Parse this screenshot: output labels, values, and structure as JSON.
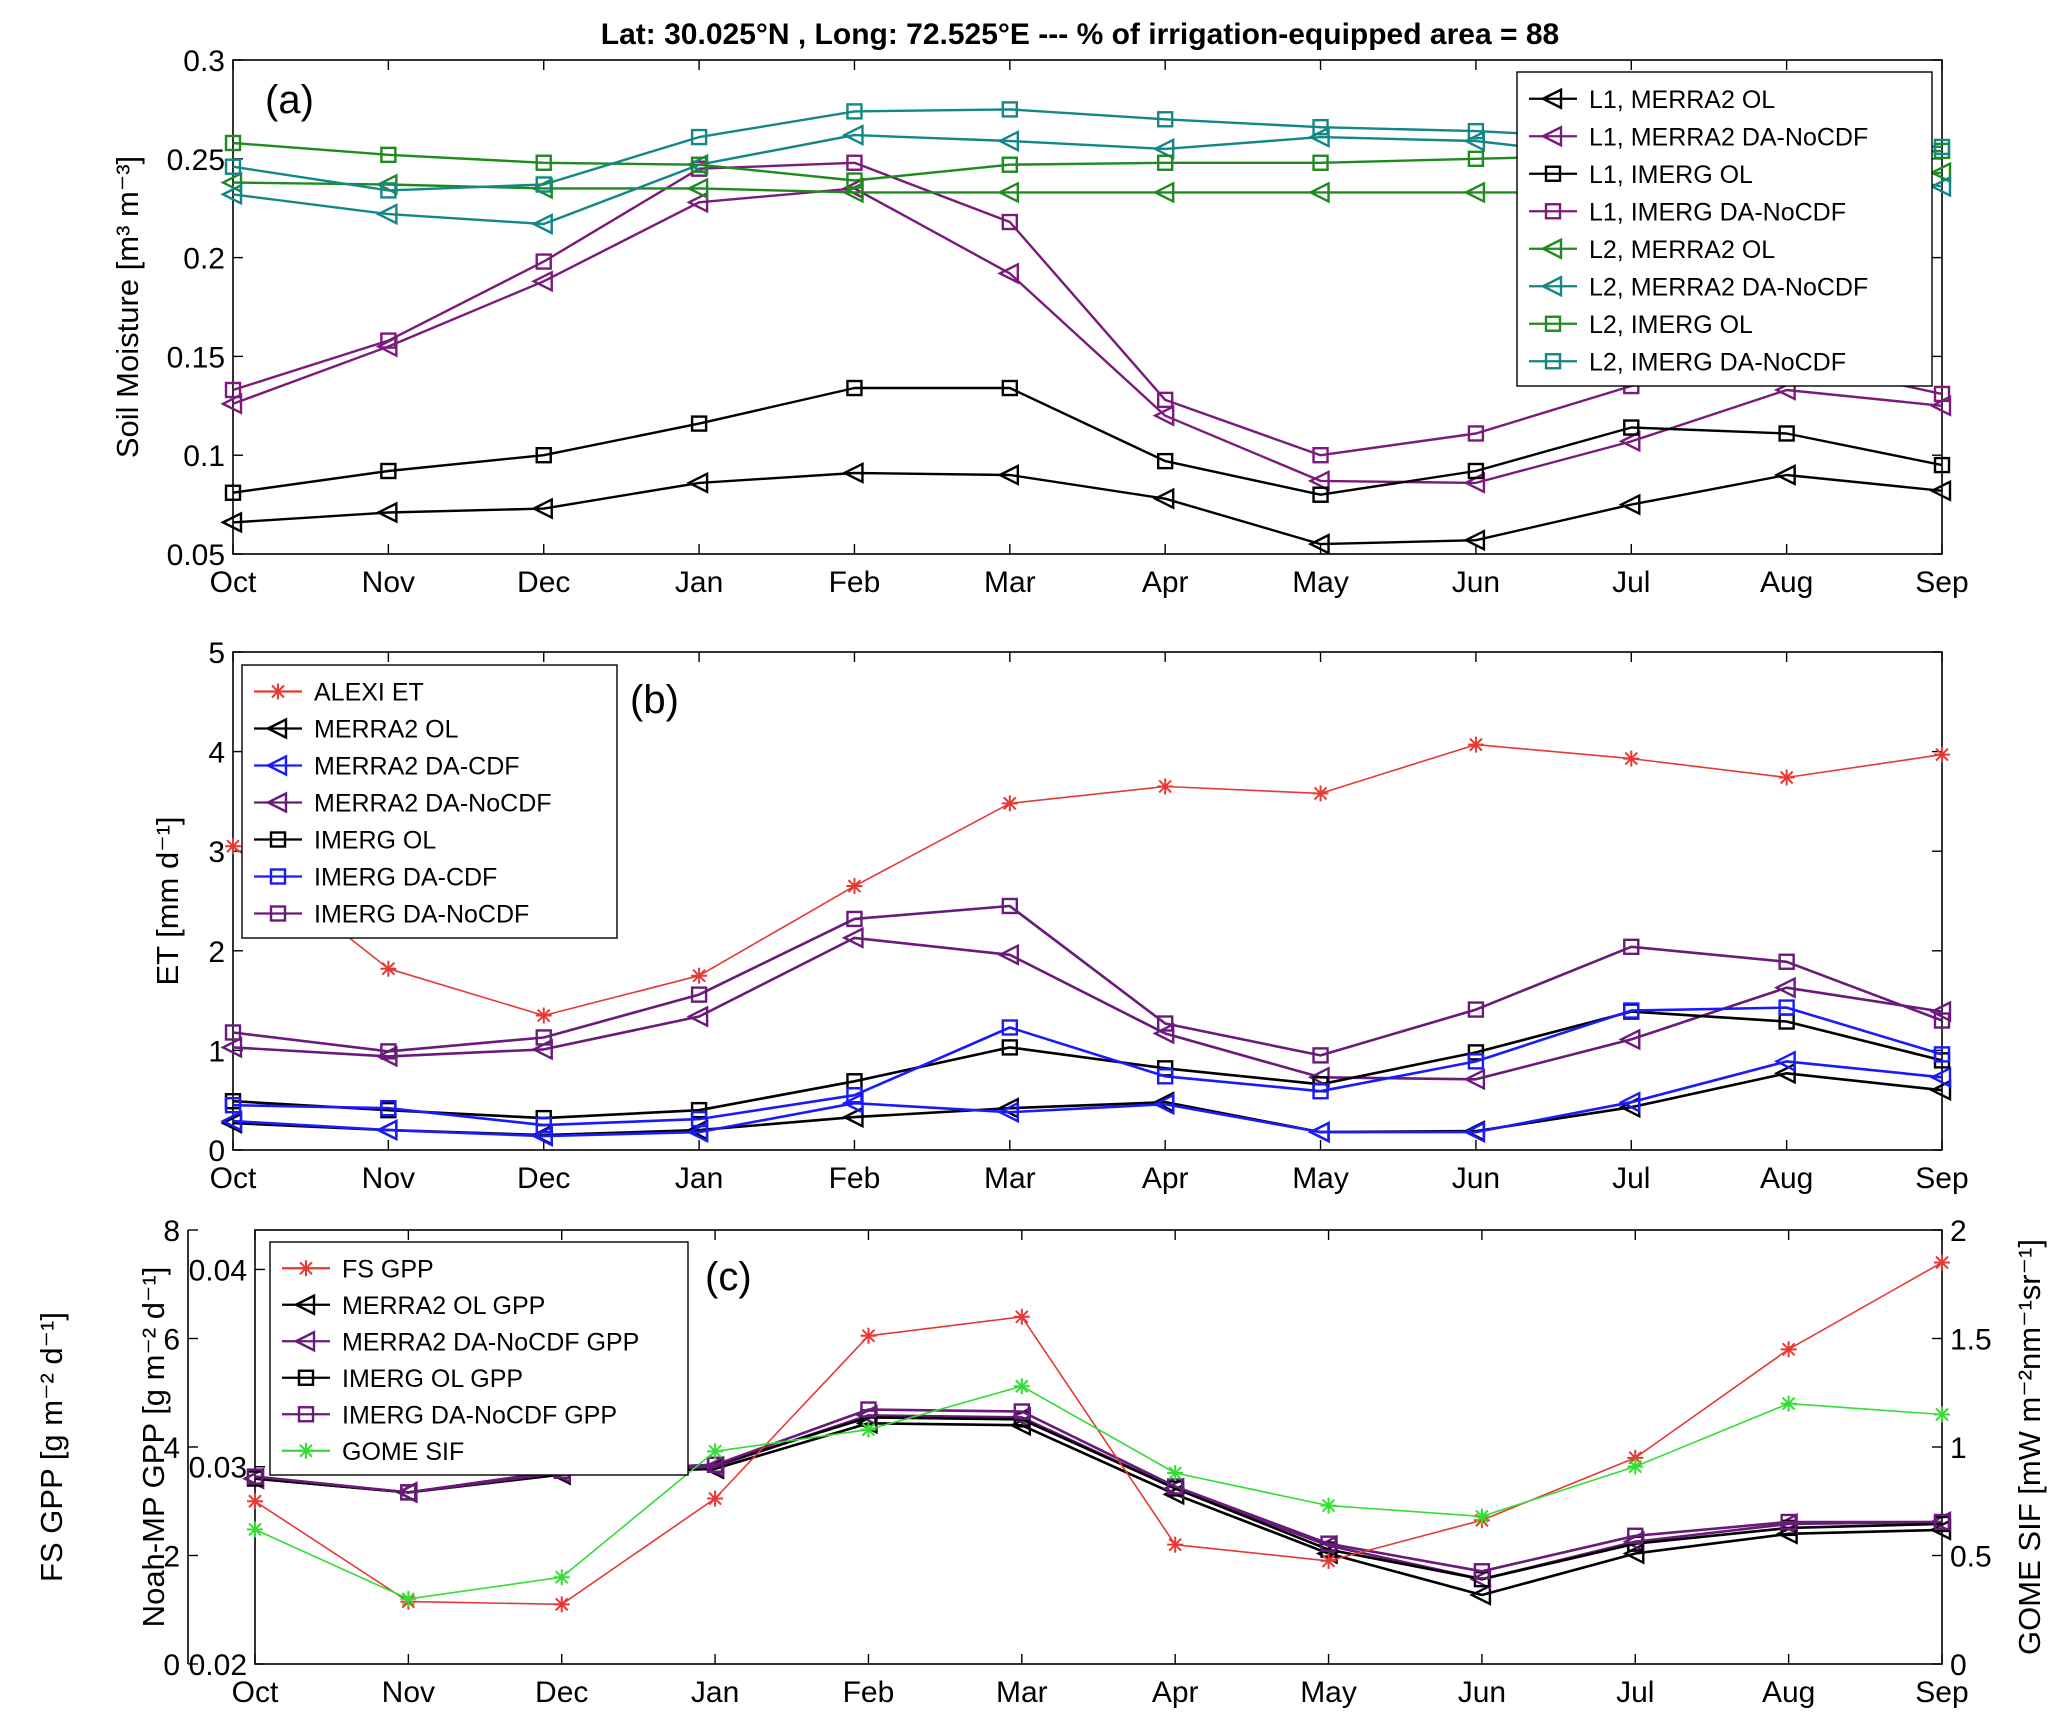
{
  "figure_title": "Lat: 30.025°N , Long: 72.525°E  ---  % of irrigation-equipped area = 88",
  "chart_data": [
    {
      "type": "line",
      "panel_label": "(a)",
      "ylabel": "Soil Moisture [m³ m⁻³]",
      "ylim": [
        0.05,
        0.3
      ],
      "yticks": [
        "0.05",
        "0.1",
        "0.15",
        "0.2",
        "0.25",
        "0.3"
      ],
      "categories": [
        "Oct",
        "Nov",
        "Dec",
        "Jan",
        "Feb",
        "Mar",
        "Apr",
        "May",
        "Jun",
        "Jul",
        "Aug",
        "Sep"
      ],
      "legend_position": "top-right",
      "series": [
        {
          "name": "L1, MERRA2 OL",
          "color": "#000000",
          "marker": "triangle-left",
          "values": [
            0.066,
            0.071,
            0.073,
            0.086,
            0.091,
            0.09,
            0.078,
            0.055,
            0.057,
            0.075,
            0.09,
            0.082
          ]
        },
        {
          "name": "L1, MERRA2 DA-NoCDF",
          "color": "#7b1a7b",
          "marker": "triangle-left",
          "values": [
            0.126,
            0.155,
            0.188,
            0.228,
            0.235,
            0.192,
            0.12,
            0.087,
            0.086,
            0.107,
            0.133,
            0.125
          ]
        },
        {
          "name": "L1, IMERG OL",
          "color": "#000000",
          "marker": "square",
          "values": [
            0.081,
            0.092,
            0.1,
            0.116,
            0.134,
            0.134,
            0.097,
            0.08,
            0.092,
            0.114,
            0.111,
            0.095
          ]
        },
        {
          "name": "L1, IMERG DA-NoCDF",
          "color": "#7b1a7b",
          "marker": "square",
          "values": [
            0.133,
            0.158,
            0.198,
            0.245,
            0.248,
            0.218,
            0.128,
            0.1,
            0.111,
            0.135,
            0.148,
            0.131
          ]
        },
        {
          "name": "L2, MERRA2 OL",
          "color": "#1f8a1f",
          "marker": "triangle-left",
          "values": [
            0.238,
            0.237,
            0.235,
            0.235,
            0.233,
            0.233,
            0.233,
            0.233,
            0.233,
            0.233,
            0.233,
            0.243
          ]
        },
        {
          "name": "L2, MERRA2 DA-NoCDF",
          "color": "#138686",
          "marker": "triangle-left",
          "values": [
            0.232,
            0.222,
            0.217,
            0.247,
            0.262,
            0.259,
            0.255,
            0.261,
            0.259,
            0.25,
            0.25,
            0.236
          ]
        },
        {
          "name": "L2, IMERG OL",
          "color": "#1f8a1f",
          "marker": "square",
          "values": [
            0.258,
            0.252,
            0.248,
            0.247,
            0.239,
            0.247,
            0.248,
            0.248,
            0.25,
            0.252,
            0.252,
            0.254
          ]
        },
        {
          "name": "L2, IMERG DA-NoCDF",
          "color": "#138686",
          "marker": "square",
          "values": [
            0.246,
            0.234,
            0.237,
            0.261,
            0.274,
            0.275,
            0.27,
            0.266,
            0.264,
            0.26,
            0.258,
            0.256
          ]
        }
      ]
    },
    {
      "type": "line",
      "panel_label": "(b)",
      "ylabel": "ET [mm d⁻¹]",
      "ylim": [
        0,
        5
      ],
      "yticks": [
        "0",
        "1",
        "2",
        "3",
        "4",
        "5"
      ],
      "categories": [
        "Oct",
        "Nov",
        "Dec",
        "Jan",
        "Feb",
        "Mar",
        "Apr",
        "May",
        "Jun",
        "Jul",
        "Aug",
        "Sep"
      ],
      "legend_position": "top-left",
      "series": [
        {
          "name": "ALEXI ET",
          "color": "#e53935",
          "marker": "asterisk",
          "values": [
            3.05,
            1.82,
            1.35,
            1.75,
            2.65,
            3.48,
            3.65,
            3.58,
            4.07,
            3.93,
            3.74,
            3.97
          ]
        },
        {
          "name": "MERRA2 OL",
          "color": "#000000",
          "marker": "triangle-left",
          "values": [
            0.27,
            0.2,
            0.15,
            0.2,
            0.33,
            0.42,
            0.48,
            0.18,
            0.19,
            0.43,
            0.77,
            0.6
          ]
        },
        {
          "name": "MERRA2 DA-CDF",
          "color": "#1a1aff",
          "marker": "triangle-left",
          "values": [
            0.29,
            0.2,
            0.14,
            0.18,
            0.47,
            0.38,
            0.46,
            0.18,
            0.18,
            0.48,
            0.89,
            0.73
          ]
        },
        {
          "name": "MERRA2 DA-NoCDF",
          "color": "#6a1a7a",
          "marker": "triangle-left",
          "values": [
            1.03,
            0.94,
            1.01,
            1.34,
            2.13,
            1.96,
            1.17,
            0.73,
            0.71,
            1.11,
            1.63,
            1.39
          ]
        },
        {
          "name": "IMERG OL",
          "color": "#000000",
          "marker": "square",
          "values": [
            0.49,
            0.4,
            0.32,
            0.4,
            0.69,
            1.03,
            0.82,
            0.66,
            0.98,
            1.39,
            1.29,
            0.9
          ]
        },
        {
          "name": "IMERG DA-CDF",
          "color": "#1a1aff",
          "marker": "square",
          "values": [
            0.45,
            0.42,
            0.25,
            0.31,
            0.55,
            1.23,
            0.74,
            0.59,
            0.89,
            1.4,
            1.43,
            0.96
          ]
        },
        {
          "name": "IMERG DA-NoCDF",
          "color": "#6a1a7a",
          "marker": "square",
          "values": [
            1.18,
            0.99,
            1.13,
            1.56,
            2.32,
            2.45,
            1.27,
            0.95,
            1.41,
            2.04,
            1.89,
            1.3
          ]
        }
      ]
    },
    {
      "type": "line",
      "panel_label": "(c)",
      "ylabel_left_outer": "FS GPP [g m⁻² d⁻¹]",
      "ylabel_left_inner": "Noah-MP GPP [g m⁻² d⁻¹]",
      "ylabel_right": "GOME SIF [mW m⁻²nm⁻¹sr⁻¹]",
      "ylim_left_outer": [
        0,
        8
      ],
      "yticks_left_outer": [
        "0",
        "2",
        "4",
        "6",
        "8"
      ],
      "ylim_left_inner": [
        0.02,
        0.042
      ],
      "yticks_left_inner": [
        "0.02",
        "0.03",
        "0.04"
      ],
      "ylim_right": [
        0,
        2
      ],
      "yticks_right": [
        "0",
        "0.5",
        "1",
        "1.5",
        "2"
      ],
      "categories": [
        "Oct",
        "Nov",
        "Dec",
        "Jan",
        "Feb",
        "Mar",
        "Apr",
        "May",
        "Jun",
        "Jul",
        "Aug",
        "Sep"
      ],
      "legend_position": "top-left",
      "series": [
        {
          "name": "FS GPP",
          "axis": "left_outer",
          "color": "#e53935",
          "marker": "asterisk",
          "values": [
            3.0,
            1.15,
            1.1,
            3.05,
            6.05,
            6.4,
            2.2,
            1.9,
            2.65,
            3.8,
            5.8,
            7.4
          ]
        },
        {
          "name": "MERRA2 OL GPP",
          "axis": "left_inner",
          "color": "#000000",
          "marker": "triangle-left",
          "values": [
            0.0294,
            0.0287,
            0.0296,
            0.0299,
            0.0322,
            0.0321,
            0.0286,
            0.0256,
            0.0235,
            0.0256,
            0.0266,
            0.0268
          ]
        },
        {
          "name": "MERRA2 DA-NoCDF GPP",
          "axis": "left_inner",
          "color": "#6a1a7a",
          "marker": "triangle-left",
          "values": [
            0.0294,
            0.0287,
            0.0297,
            0.03,
            0.0326,
            0.0325,
            0.0289,
            0.026,
            0.0243,
            0.0262,
            0.0271,
            0.0272
          ]
        },
        {
          "name": "IMERG OL GPP",
          "axis": "left_inner",
          "color": "#000000",
          "marker": "square",
          "values": [
            0.0294,
            0.0287,
            0.0298,
            0.0301,
            0.0325,
            0.0324,
            0.0289,
            0.0258,
            0.0243,
            0.0261,
            0.0269,
            0.0271
          ]
        },
        {
          "name": "IMERG DA-NoCDF GPP",
          "axis": "left_inner",
          "color": "#6a1a7a",
          "marker": "square",
          "values": [
            0.0295,
            0.0287,
            0.0298,
            0.0301,
            0.0329,
            0.0328,
            0.029,
            0.0261,
            0.0247,
            0.0265,
            0.0272,
            0.0272
          ]
        },
        {
          "name": "GOME SIF",
          "axis": "right",
          "color": "#33dd33",
          "marker": "asterisk",
          "values": [
            0.62,
            0.3,
            0.4,
            0.98,
            1.08,
            1.28,
            0.88,
            0.73,
            0.68,
            0.91,
            1.2,
            1.15
          ]
        }
      ]
    }
  ]
}
